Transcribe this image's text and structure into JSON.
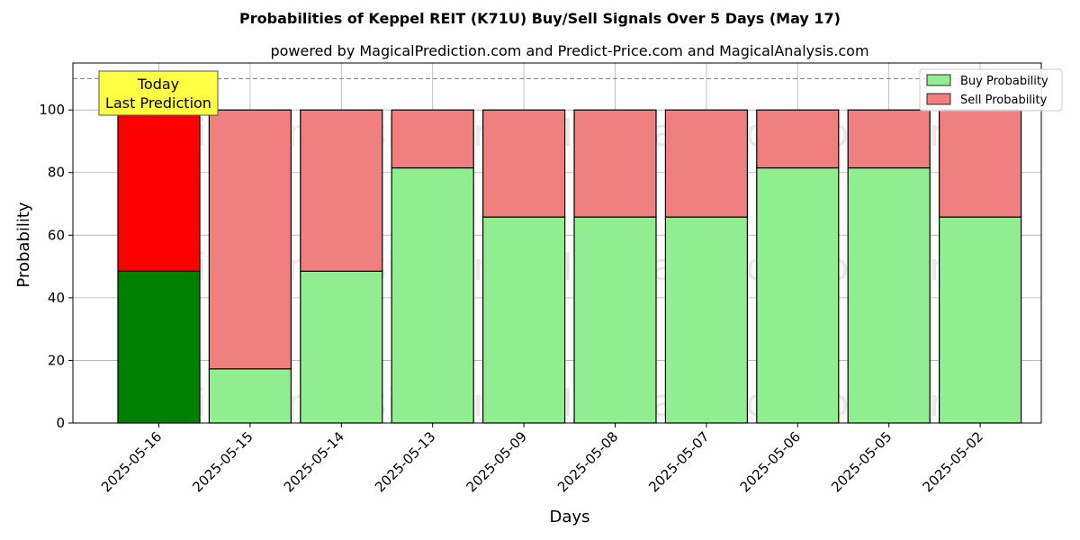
{
  "chart_data": {
    "type": "bar",
    "stacked": true,
    "title": "Probabilities of Keppel REIT (K71U) Buy/Sell Signals Over 5 Days (May 17)",
    "subtitle": "powered by MagicalPrediction.com and Predict-Price.com and MagicalAnalysis.com",
    "xlabel": "Days",
    "ylabel": "Probability",
    "ylim": [
      0,
      115
    ],
    "yticks": [
      0,
      20,
      40,
      60,
      80,
      100
    ],
    "grid": true,
    "reference_line": 110,
    "categories": [
      "2025-05-16",
      "2025-05-15",
      "2025-05-14",
      "2025-05-13",
      "2025-05-09",
      "2025-05-08",
      "2025-05-07",
      "2025-05-06",
      "2025-05-05",
      "2025-05-02"
    ],
    "series": [
      {
        "name": "Buy Probability",
        "values": [
          48.5,
          17.3,
          48.5,
          81.5,
          65.8,
          65.8,
          65.8,
          81.5,
          81.5,
          65.8
        ]
      },
      {
        "name": "Sell Probability",
        "values": [
          51.5,
          82.7,
          51.5,
          18.5,
          34.2,
          34.2,
          34.2,
          18.5,
          18.5,
          34.2
        ]
      }
    ],
    "colors": {
      "buy": "#90ee90",
      "sell": "#f08080",
      "buy_highlight": "#008000",
      "sell_highlight": "#ff0000",
      "annotation_bg": "#ffff44"
    },
    "highlight_index": 0,
    "legend": {
      "position": "top-right",
      "entries": [
        "Buy Probability",
        "Sell Probability"
      ]
    },
    "annotation": {
      "line1": "Today",
      "line2": "Last Prediction"
    },
    "watermarks": [
      "MagicalAnalysis.com",
      "MagicalPrediction.com"
    ]
  }
}
